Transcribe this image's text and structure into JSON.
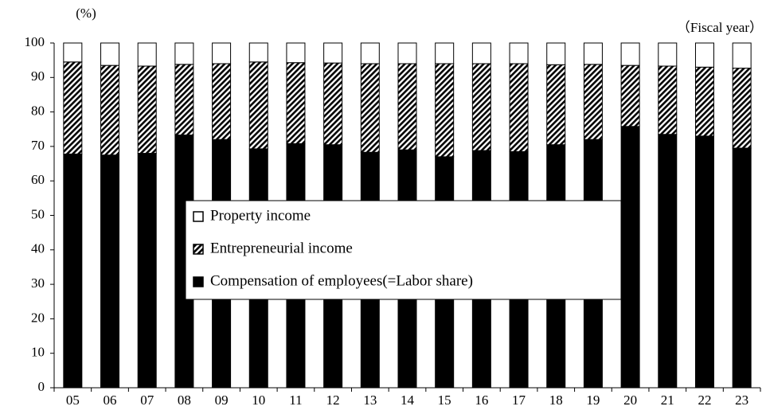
{
  "chart_data": {
    "type": "stacked_bar",
    "y_label": "(%)",
    "x_label": "（Fiscal year）",
    "categories": [
      "05",
      "06",
      "07",
      "08",
      "09",
      "10",
      "11",
      "12",
      "13",
      "14",
      "15",
      "16",
      "17",
      "18",
      "19",
      "20",
      "21",
      "22",
      "23"
    ],
    "series": [
      {
        "name": "Compensation of employees(=Labor share)",
        "color": "#000000",
        "fill": "solid",
        "values": [
          67.8,
          67.5,
          68,
          73.3,
          72,
          69.3,
          70.8,
          70.5,
          68.3,
          69,
          67,
          68.8,
          68.5,
          70.5,
          72,
          75.8,
          73.5,
          73,
          69.5
        ]
      },
      {
        "name": "Entrepreneurial income",
        "color": "#000000",
        "fill": "hatch",
        "values": [
          26.7,
          26,
          25.3,
          20.5,
          22,
          25.2,
          23.5,
          23.7,
          25.7,
          25,
          27,
          25.2,
          25.5,
          23.2,
          21.8,
          17.7,
          19.8,
          20,
          23.2
        ]
      },
      {
        "name": "Property income",
        "color": "#ffffff",
        "fill": "solid",
        "values": [
          5.5,
          6.5,
          6.7,
          6.2,
          6,
          5.5,
          5.7,
          5.8,
          6,
          6,
          6,
          6,
          6,
          6.3,
          6.2,
          6.5,
          6.7,
          7,
          7.3
        ]
      }
    ],
    "ylim": [
      0,
      100
    ],
    "yticks": [
      0,
      10,
      20,
      30,
      40,
      50,
      60,
      70,
      80,
      90,
      100
    ],
    "legend": "center",
    "grid": false
  }
}
